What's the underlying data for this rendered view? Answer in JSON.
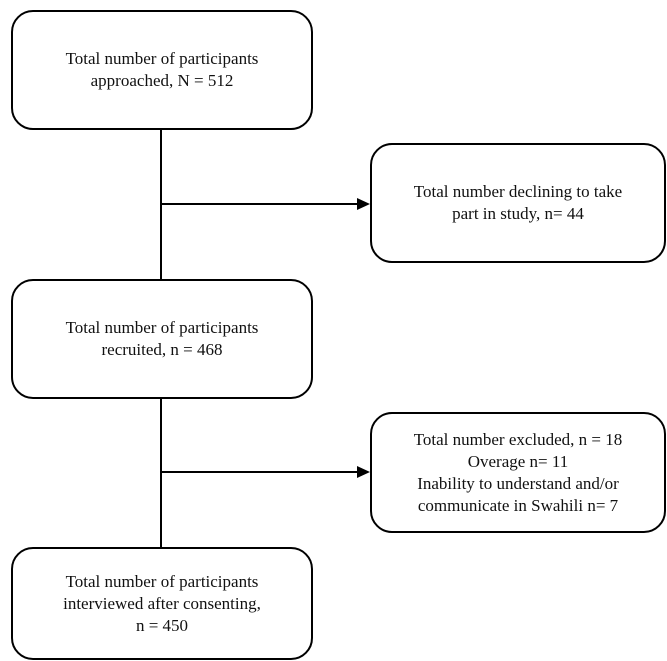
{
  "flowchart": {
    "approached": {
      "lines": [
        "Total number of participants",
        "approached, N = 512"
      ]
    },
    "declined": {
      "lines": [
        "Total number declining to take",
        "part in study, n= 44"
      ]
    },
    "recruited": {
      "lines": [
        "Total number of participants",
        "recruited, n = 468"
      ]
    },
    "excluded": {
      "lines": [
        "Total number excluded, n = 18",
        "Overage n= 11",
        "Inability to understand and/or",
        "communicate in Swahili n= 7"
      ]
    },
    "interviewed": {
      "lines": [
        "Total number of participants",
        "interviewed after consenting,",
        "n = 450"
      ]
    }
  }
}
